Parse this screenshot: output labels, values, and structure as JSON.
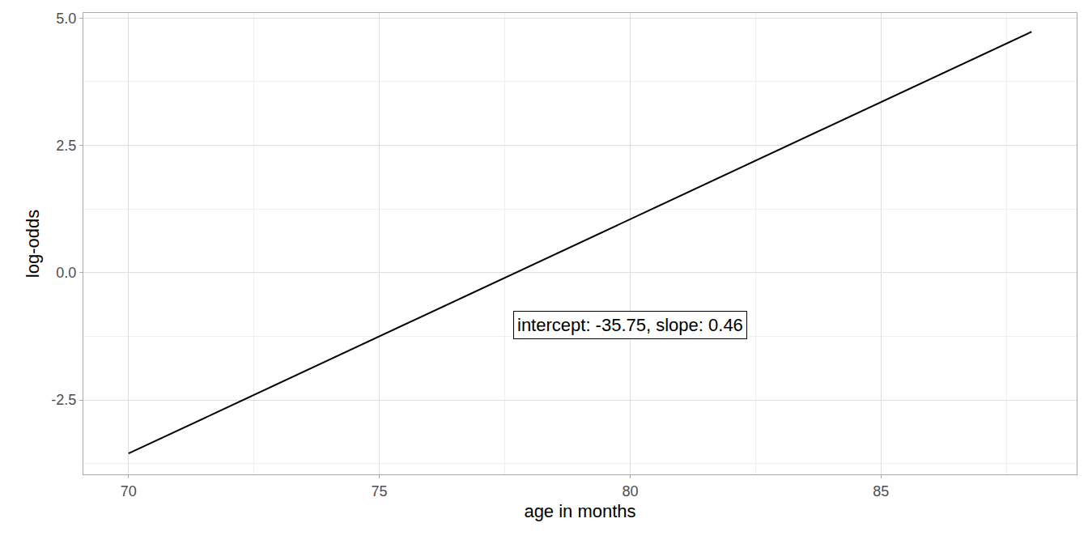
{
  "chart_data": {
    "type": "line",
    "x_label": "age in months",
    "y_label": "log-odds",
    "x": [
      70,
      88
    ],
    "values": [
      -3.55,
      4.73
    ],
    "color": "#000000",
    "xlim": [
      69.1,
      88.9
    ],
    "ylim": [
      -3.96,
      5.1
    ],
    "xticks": [
      70,
      75,
      80,
      85
    ],
    "yticks": [
      -2.5,
      {
        "value": 0,
        "label": "0.0"
      },
      2.5,
      {
        "value": 5,
        "label": "5.0"
      }
    ],
    "grid": true,
    "annotations": [
      {
        "text": "intercept: -35.75, slope: 0.46",
        "x": 80,
        "y": -1.02
      }
    ]
  }
}
